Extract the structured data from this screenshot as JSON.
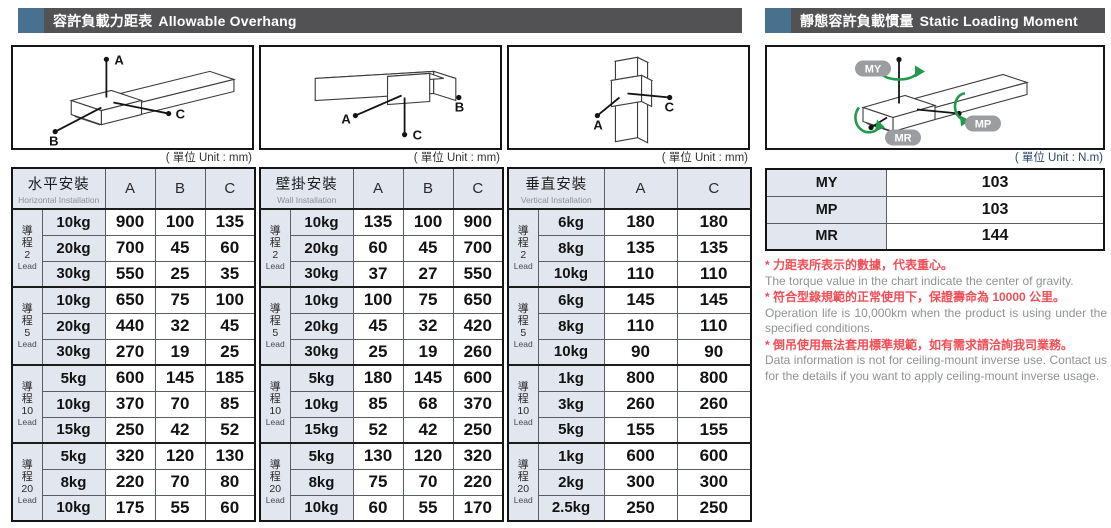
{
  "page": {
    "header_left": {
      "zh": "容許負載力距表",
      "en": "Allowable Overhang"
    },
    "header_right": {
      "zh": "靜態容許負載慣量",
      "en": "Static Loading Moment"
    },
    "unit_mm": "( 單位 Unit : mm)",
    "unit_nm": "( 單位 Unit : N.m)"
  },
  "diagrams": {
    "horizontal": {
      "a": "A",
      "b": "B",
      "c": "C"
    },
    "wall": {
      "a": "A",
      "b": "B",
      "c": "C"
    },
    "vertical": {
      "a": "A",
      "c": "C"
    },
    "moment": {
      "my": "MY",
      "mp": "MP",
      "mr": "MR"
    }
  },
  "tables": [
    {
      "title_zh": "水平安裝",
      "title_en": "Horizontal Installation",
      "columns": [
        "A",
        "B",
        "C"
      ],
      "groups": [
        {
          "lead_zh": "導程",
          "lead_num": "2",
          "lead_en": "Lead",
          "rows": [
            [
              "10kg",
              "900",
              "100",
              "135"
            ],
            [
              "20kg",
              "700",
              "45",
              "60"
            ],
            [
              "30kg",
              "550",
              "25",
              "35"
            ]
          ]
        },
        {
          "lead_zh": "導程",
          "lead_num": "5",
          "lead_en": "Lead",
          "rows": [
            [
              "10kg",
              "650",
              "75",
              "100"
            ],
            [
              "20kg",
              "440",
              "32",
              "45"
            ],
            [
              "30kg",
              "270",
              "19",
              "25"
            ]
          ]
        },
        {
          "lead_zh": "導程",
          "lead_num": "10",
          "lead_en": "Lead",
          "rows": [
            [
              "5kg",
              "600",
              "145",
              "185"
            ],
            [
              "10kg",
              "370",
              "70",
              "85"
            ],
            [
              "15kg",
              "250",
              "42",
              "52"
            ]
          ]
        },
        {
          "lead_zh": "導程",
          "lead_num": "20",
          "lead_en": "Lead",
          "rows": [
            [
              "5kg",
              "320",
              "120",
              "130"
            ],
            [
              "8kg",
              "220",
              "70",
              "80"
            ],
            [
              "10kg",
              "175",
              "55",
              "60"
            ]
          ]
        }
      ]
    },
    {
      "title_zh": "壁掛安裝",
      "title_en": "Wall Installation",
      "columns": [
        "A",
        "B",
        "C"
      ],
      "groups": [
        {
          "lead_zh": "導程",
          "lead_num": "2",
          "lead_en": "Lead",
          "rows": [
            [
              "10kg",
              "135",
              "100",
              "900"
            ],
            [
              "20kg",
              "60",
              "45",
              "700"
            ],
            [
              "30kg",
              "37",
              "27",
              "550"
            ]
          ]
        },
        {
          "lead_zh": "導程",
          "lead_num": "5",
          "lead_en": "Lead",
          "rows": [
            [
              "10kg",
              "100",
              "75",
              "650"
            ],
            [
              "20kg",
              "45",
              "32",
              "420"
            ],
            [
              "30kg",
              "25",
              "19",
              "260"
            ]
          ]
        },
        {
          "lead_zh": "導程",
          "lead_num": "10",
          "lead_en": "Lead",
          "rows": [
            [
              "5kg",
              "180",
              "145",
              "600"
            ],
            [
              "10kg",
              "85",
              "68",
              "370"
            ],
            [
              "15kg",
              "52",
              "42",
              "250"
            ]
          ]
        },
        {
          "lead_zh": "導程",
          "lead_num": "20",
          "lead_en": "Lead",
          "rows": [
            [
              "5kg",
              "130",
              "120",
              "320"
            ],
            [
              "8kg",
              "75",
              "70",
              "220"
            ],
            [
              "10kg",
              "60",
              "55",
              "170"
            ]
          ]
        }
      ]
    },
    {
      "title_zh": "垂直安裝",
      "title_en": "Vertical Installation",
      "columns": [
        "A",
        "C"
      ],
      "groups": [
        {
          "lead_zh": "導程",
          "lead_num": "2",
          "lead_en": "Lead",
          "rows": [
            [
              "6kg",
              "180",
              "180"
            ],
            [
              "8kg",
              "135",
              "135"
            ],
            [
              "10kg",
              "110",
              "110"
            ]
          ]
        },
        {
          "lead_zh": "導程",
          "lead_num": "5",
          "lead_en": "Lead",
          "rows": [
            [
              "6kg",
              "145",
              "145"
            ],
            [
              "8kg",
              "110",
              "110"
            ],
            [
              "10kg",
              "90",
              "90"
            ]
          ]
        },
        {
          "lead_zh": "導程",
          "lead_num": "10",
          "lead_en": "Lead",
          "rows": [
            [
              "1kg",
              "800",
              "800"
            ],
            [
              "3kg",
              "260",
              "260"
            ],
            [
              "5kg",
              "155",
              "155"
            ]
          ]
        },
        {
          "lead_zh": "導程",
          "lead_num": "20",
          "lead_en": "Lead",
          "rows": [
            [
              "1kg",
              "600",
              "600"
            ],
            [
              "2kg",
              "300",
              "300"
            ],
            [
              "2.5kg",
              "250",
              "250"
            ]
          ]
        }
      ]
    }
  ],
  "moment_table": {
    "rows": [
      [
        "MY",
        "103"
      ],
      [
        "MP",
        "103"
      ],
      [
        "MR",
        "144"
      ]
    ]
  },
  "notes": [
    {
      "zh": "* 力距表所表示的數據，代表重心。",
      "en": "The torque value in the chart indicate the center of gravity."
    },
    {
      "zh": "* 符合型錄規範的正常使用下，保證壽命為 10000 公里。",
      "en": "Operation life is 10,000km when the product is using under the specified conditions."
    },
    {
      "zh": "* 倒吊使用無法套用標準規範，如有需求請洽詢我司業務。",
      "en": "Data information is not for ceiling-mount inverse use. Contact us for the details if you want to apply ceiling-mount inverse usage."
    }
  ],
  "colors": {
    "accent_blue": "#48708f",
    "bar_gray": "#525254",
    "cell_bg": "#e2e6ef",
    "note_red": "#ef4f56",
    "arrow_green": "#229b4c"
  }
}
